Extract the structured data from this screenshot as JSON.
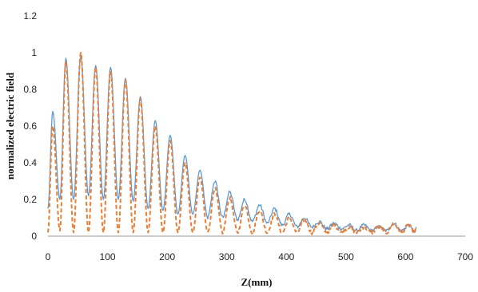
{
  "chart_data": {
    "type": "line",
    "title": "",
    "xlabel": "Z(mm)",
    "ylabel": "normalized  electric field",
    "xlim": [
      0,
      700
    ],
    "ylim": [
      0,
      1.2
    ],
    "x_ticks": [
      "0",
      "100",
      "200",
      "300",
      "400",
      "500",
      "600",
      "700"
    ],
    "y_ticks": [
      "0",
      "0.2",
      "0.4",
      "0.6",
      "0.8",
      "1",
      "1.2"
    ],
    "grid": false,
    "legend": "none",
    "oscillation_period_mm": 25,
    "series": [
      {
        "color": "#5b9bd5",
        "line_style": "solid",
        "peaks": [
          [
            8,
            0.68
          ],
          [
            30,
            0.97
          ],
          [
            55,
            0.98
          ],
          [
            80,
            0.93
          ],
          [
            105,
            0.92
          ],
          [
            130,
            0.86
          ],
          [
            155,
            0.76
          ],
          [
            180,
            0.63
          ],
          [
            205,
            0.55
          ],
          [
            230,
            0.44
          ],
          [
            255,
            0.36
          ],
          [
            280,
            0.3
          ],
          [
            305,
            0.24
          ],
          [
            330,
            0.2
          ],
          [
            355,
            0.17
          ],
          [
            380,
            0.15
          ],
          [
            405,
            0.12
          ],
          [
            430,
            0.1
          ],
          [
            455,
            0.08
          ],
          [
            480,
            0.07
          ],
          [
            505,
            0.06
          ],
          [
            530,
            0.06
          ],
          [
            555,
            0.05
          ],
          [
            580,
            0.07
          ],
          [
            605,
            0.06
          ],
          [
            618,
            0.05
          ]
        ],
        "troughs": [
          [
            0,
            0.15
          ],
          [
            20,
            0.2
          ],
          [
            43,
            0.2
          ],
          [
            68,
            0.22
          ],
          [
            93,
            0.2
          ],
          [
            118,
            0.2
          ],
          [
            143,
            0.19
          ],
          [
            168,
            0.15
          ],
          [
            193,
            0.14
          ],
          [
            218,
            0.12
          ],
          [
            243,
            0.12
          ],
          [
            268,
            0.1
          ],
          [
            293,
            0.1
          ],
          [
            318,
            0.09
          ],
          [
            343,
            0.08
          ],
          [
            368,
            0.07
          ],
          [
            393,
            0.06
          ],
          [
            418,
            0.05
          ],
          [
            443,
            0.05
          ],
          [
            468,
            0.04
          ],
          [
            493,
            0.04
          ],
          [
            518,
            0.03
          ],
          [
            543,
            0.03
          ],
          [
            568,
            0.03
          ],
          [
            593,
            0.03
          ],
          [
            615,
            0.02
          ]
        ]
      },
      {
        "color": "#ed7d31",
        "line_style": "dashed",
        "peaks": [
          [
            8,
            0.6
          ],
          [
            30,
            0.95
          ],
          [
            55,
            1.0
          ],
          [
            80,
            0.92
          ],
          [
            105,
            0.9
          ],
          [
            130,
            0.85
          ],
          [
            155,
            0.75
          ],
          [
            180,
            0.6
          ],
          [
            205,
            0.52
          ],
          [
            230,
            0.4
          ],
          [
            255,
            0.32
          ],
          [
            280,
            0.26
          ],
          [
            305,
            0.21
          ],
          [
            330,
            0.17
          ],
          [
            355,
            0.14
          ],
          [
            380,
            0.12
          ],
          [
            405,
            0.1
          ],
          [
            430,
            0.09
          ],
          [
            455,
            0.07
          ],
          [
            480,
            0.06
          ],
          [
            505,
            0.05
          ],
          [
            530,
            0.05
          ],
          [
            555,
            0.05
          ],
          [
            580,
            0.07
          ],
          [
            605,
            0.06
          ],
          [
            618,
            0.05
          ]
        ],
        "troughs": [
          [
            0,
            0.02
          ],
          [
            20,
            0.03
          ],
          [
            43,
            0.02
          ],
          [
            68,
            0.02
          ],
          [
            93,
            0.02
          ],
          [
            118,
            0.02
          ],
          [
            143,
            0.02
          ],
          [
            168,
            0.02
          ],
          [
            193,
            0.02
          ],
          [
            218,
            0.02
          ],
          [
            243,
            0.02
          ],
          [
            268,
            0.02
          ],
          [
            293,
            0.02
          ],
          [
            318,
            0.02
          ],
          [
            343,
            0.02
          ],
          [
            368,
            0.02
          ],
          [
            393,
            0.02
          ],
          [
            418,
            0.02
          ],
          [
            443,
            0.02
          ],
          [
            468,
            0.02
          ],
          [
            493,
            0.02
          ],
          [
            518,
            0.02
          ],
          [
            543,
            0.02
          ],
          [
            568,
            0.02
          ],
          [
            593,
            0.02
          ],
          [
            615,
            0.02
          ]
        ]
      }
    ]
  }
}
